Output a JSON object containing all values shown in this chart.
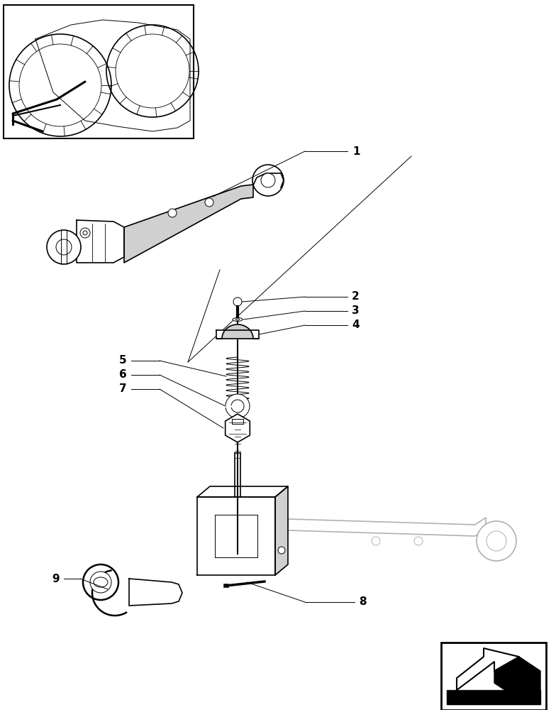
{
  "bg_color": "#ffffff",
  "line_color": "#000000",
  "light_gray": "#d0d0d0",
  "mid_gray": "#b0b0b0",
  "figure_width": 7.84,
  "figure_height": 10.0,
  "dpi": 100
}
